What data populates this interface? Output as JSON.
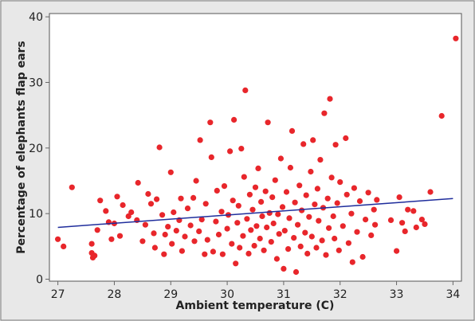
{
  "chart_data": {
    "type": "scatter",
    "title": "",
    "xlabel": "Ambient temperature (C)",
    "ylabel": "Percentage of elephants flap ears",
    "xlim": [
      26.85,
      34.15
    ],
    "ylim": [
      -0.3,
      40.5
    ],
    "xticks": [
      27,
      28,
      29,
      30,
      31,
      32,
      33,
      34
    ],
    "yticks": [
      0,
      10,
      20,
      30,
      40
    ],
    "grid": false,
    "legend": "none",
    "colors": {
      "points": "#e8262b",
      "fit_line": "#1f2d9c",
      "frame_background": "#e8e8e8",
      "plot_background": "#ffffff",
      "axis": "#666666"
    },
    "fit_line": {
      "x": [
        27.0,
        34.0
      ],
      "y": [
        7.9,
        12.3
      ]
    },
    "series": [
      {
        "points": [
          [
            27.0,
            6.1
          ],
          [
            27.1,
            5.0
          ],
          [
            27.25,
            14.0
          ],
          [
            27.6,
            5.4
          ],
          [
            27.6,
            4.0
          ],
          [
            27.62,
            3.3
          ],
          [
            27.65,
            3.6
          ],
          [
            27.7,
            7.5
          ],
          [
            27.75,
            12.0
          ],
          [
            27.85,
            10.4
          ],
          [
            27.9,
            8.7
          ],
          [
            27.95,
            6.1
          ],
          [
            28.0,
            8.5
          ],
          [
            28.05,
            12.6
          ],
          [
            28.1,
            6.6
          ],
          [
            28.15,
            11.3
          ],
          [
            28.25,
            9.6
          ],
          [
            28.3,
            10.2
          ],
          [
            28.4,
            9.0
          ],
          [
            28.42,
            14.7
          ],
          [
            28.5,
            5.8
          ],
          [
            28.55,
            8.3
          ],
          [
            28.6,
            13.0
          ],
          [
            28.65,
            11.5
          ],
          [
            28.7,
            7.0
          ],
          [
            28.72,
            4.8
          ],
          [
            28.75,
            12.2
          ],
          [
            28.8,
            20.1
          ],
          [
            28.85,
            9.8
          ],
          [
            28.88,
            3.8
          ],
          [
            28.9,
            6.8
          ],
          [
            28.95,
            8.0
          ],
          [
            29.0,
            16.3
          ],
          [
            29.02,
            5.4
          ],
          [
            29.05,
            10.2
          ],
          [
            29.1,
            7.4
          ],
          [
            29.15,
            9.0
          ],
          [
            29.18,
            12.3
          ],
          [
            29.2,
            4.3
          ],
          [
            29.25,
            6.5
          ],
          [
            29.3,
            10.8
          ],
          [
            29.35,
            8.2
          ],
          [
            29.4,
            12.4
          ],
          [
            29.42,
            5.8
          ],
          [
            29.45,
            15.0
          ],
          [
            29.5,
            7.3
          ],
          [
            29.52,
            21.2
          ],
          [
            29.55,
            9.1
          ],
          [
            29.6,
            3.8
          ],
          [
            29.62,
            11.5
          ],
          [
            29.65,
            6.0
          ],
          [
            29.7,
            23.9
          ],
          [
            29.72,
            18.6
          ],
          [
            29.75,
            4.2
          ],
          [
            29.8,
            8.8
          ],
          [
            29.82,
            13.5
          ],
          [
            29.85,
            6.8
          ],
          [
            29.9,
            10.3
          ],
          [
            29.92,
            3.8
          ],
          [
            29.95,
            14.2
          ],
          [
            30.0,
            7.7
          ],
          [
            30.02,
            9.8
          ],
          [
            30.05,
            19.5
          ],
          [
            30.08,
            5.4
          ],
          [
            30.1,
            12.0
          ],
          [
            30.12,
            24.3
          ],
          [
            30.15,
            2.4
          ],
          [
            30.18,
            8.6
          ],
          [
            30.2,
            11.2
          ],
          [
            30.22,
            4.8
          ],
          [
            30.25,
            19.9
          ],
          [
            30.28,
            6.6
          ],
          [
            30.3,
            15.6
          ],
          [
            30.32,
            28.8
          ],
          [
            30.35,
            9.2
          ],
          [
            30.38,
            3.9
          ],
          [
            30.4,
            12.9
          ],
          [
            30.42,
            7.5
          ],
          [
            30.45,
            10.6
          ],
          [
            30.48,
            5.1
          ],
          [
            30.5,
            14.0
          ],
          [
            30.52,
            8.1
          ],
          [
            30.55,
            16.9
          ],
          [
            30.58,
            6.2
          ],
          [
            30.6,
            11.8
          ],
          [
            30.62,
            9.6
          ],
          [
            30.65,
            4.4
          ],
          [
            30.68,
            13.4
          ],
          [
            30.7,
            7.9
          ],
          [
            30.72,
            23.9
          ],
          [
            30.75,
            10.1
          ],
          [
            30.78,
            5.7
          ],
          [
            30.8,
            12.5
          ],
          [
            30.82,
            8.5
          ],
          [
            30.85,
            15.1
          ],
          [
            30.88,
            3.1
          ],
          [
            30.9,
            9.9
          ],
          [
            30.92,
            6.9
          ],
          [
            30.95,
            18.4
          ],
          [
            30.98,
            11.0
          ],
          [
            31.0,
            1.6
          ],
          [
            31.02,
            7.4
          ],
          [
            31.05,
            13.3
          ],
          [
            31.08,
            4.6
          ],
          [
            31.1,
            9.3
          ],
          [
            31.12,
            17.0
          ],
          [
            31.15,
            22.6
          ],
          [
            31.18,
            6.3
          ],
          [
            31.2,
            11.7
          ],
          [
            31.22,
            1.1
          ],
          [
            31.25,
            8.3
          ],
          [
            31.28,
            14.3
          ],
          [
            31.3,
            5.0
          ],
          [
            31.32,
            10.5
          ],
          [
            31.35,
            20.6
          ],
          [
            31.38,
            7.1
          ],
          [
            31.4,
            12.8
          ],
          [
            31.42,
            3.9
          ],
          [
            31.45,
            9.5
          ],
          [
            31.48,
            16.4
          ],
          [
            31.5,
            6.5
          ],
          [
            31.52,
            21.2
          ],
          [
            31.55,
            11.4
          ],
          [
            31.58,
            4.8
          ],
          [
            31.6,
            13.8
          ],
          [
            31.62,
            8.9
          ],
          [
            31.65,
            18.2
          ],
          [
            31.68,
            5.9
          ],
          [
            31.7,
            10.9
          ],
          [
            31.72,
            25.3
          ],
          [
            31.75,
            3.7
          ],
          [
            31.78,
            12.3
          ],
          [
            31.8,
            7.8
          ],
          [
            31.82,
            27.5
          ],
          [
            31.85,
            15.5
          ],
          [
            31.88,
            9.6
          ],
          [
            31.9,
            6.2
          ],
          [
            31.92,
            20.5
          ],
          [
            31.95,
            11.6
          ],
          [
            31.98,
            4.4
          ],
          [
            32.0,
            14.8
          ],
          [
            32.05,
            8.1
          ],
          [
            32.1,
            21.5
          ],
          [
            32.12,
            12.9
          ],
          [
            32.15,
            5.5
          ],
          [
            32.2,
            10.0
          ],
          [
            32.22,
            2.6
          ],
          [
            32.25,
            13.9
          ],
          [
            32.3,
            7.2
          ],
          [
            32.35,
            11.9
          ],
          [
            32.4,
            3.4
          ],
          [
            32.45,
            9.1
          ],
          [
            32.5,
            13.2
          ],
          [
            32.55,
            6.7
          ],
          [
            32.6,
            10.6
          ],
          [
            32.62,
            8.3
          ],
          [
            32.65,
            12.1
          ],
          [
            32.9,
            9.0
          ],
          [
            33.0,
            4.3
          ],
          [
            33.05,
            12.5
          ],
          [
            33.1,
            8.6
          ],
          [
            33.15,
            7.3
          ],
          [
            33.2,
            10.6
          ],
          [
            33.3,
            10.4
          ],
          [
            33.35,
            7.9
          ],
          [
            33.45,
            9.1
          ],
          [
            33.5,
            8.4
          ],
          [
            33.6,
            13.3
          ],
          [
            33.8,
            24.9
          ],
          [
            34.05,
            36.7
          ]
        ]
      }
    ]
  }
}
